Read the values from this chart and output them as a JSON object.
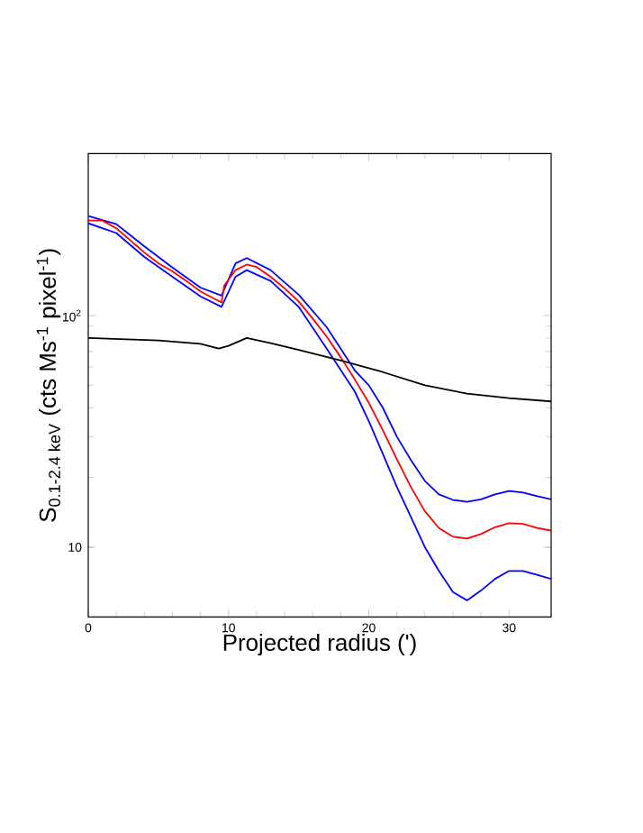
{
  "chart_data": {
    "type": "line",
    "xlabel": "Projected radius (')",
    "ylabel": "S$_{0.1-2.4 keV}$ (cts Ms$^{-1}$ pixel$^{-1}$)",
    "log": "y",
    "grid": false,
    "marker": "none",
    "line_style": "solid",
    "xlim": [
      0,
      33
    ],
    "ylim": [
      5,
      500
    ],
    "xticks": [
      0,
      10,
      20,
      30
    ],
    "yticks": [
      10,
      {
        "value": 100,
        "label": "10$^{2}$"
      }
    ],
    "series": [
      {
        "color": "#0000ff",
        "x": [
          0,
          2,
          4,
          6,
          8,
          9.5,
          10.5,
          11.3,
          13,
          15,
          17,
          19,
          20,
          21,
          22,
          23,
          24,
          25,
          26,
          27,
          28,
          29,
          30,
          31,
          32,
          33
        ],
        "values": [
          269,
          248,
          199,
          161,
          132,
          122,
          168,
          177,
          157,
          123,
          89,
          58,
          50,
          40,
          30,
          23.8,
          19.3,
          16.9,
          16.0,
          15.7,
          16.1,
          16.9,
          17.5,
          17.2,
          16.6,
          16.1
        ]
      },
      {
        "color": "#0000ff",
        "x": [
          0,
          2,
          4,
          6,
          8,
          9.5,
          10.5,
          11.3,
          13,
          15,
          17,
          19,
          20,
          21,
          22,
          23,
          24,
          25,
          26,
          27,
          28,
          29,
          30,
          31,
          32,
          33
        ],
        "values": [
          250,
          227,
          179,
          147,
          121,
          109,
          147,
          157,
          141,
          109,
          72,
          47,
          35,
          25.3,
          18.2,
          13.5,
          10.0,
          7.9,
          6.4,
          5.9,
          6.5,
          7.3,
          7.9,
          7.9,
          7.6,
          7.3
        ]
      },
      {
        "color": "#ff0000",
        "x": [
          0,
          1,
          2,
          3,
          4,
          5,
          6,
          7,
          8,
          9,
          9.5,
          9.7,
          10.5,
          11.3,
          12,
          13,
          14,
          15,
          16,
          17,
          18,
          19,
          20,
          21,
          22,
          23,
          24,
          25,
          26,
          27,
          28,
          29,
          30,
          31,
          32,
          33
        ],
        "values": [
          257,
          257,
          238,
          211,
          187,
          168,
          155,
          141,
          127,
          118,
          114,
          135,
          157,
          166,
          162,
          147,
          131,
          115,
          97,
          81,
          66,
          53,
          42,
          32,
          24,
          18.2,
          14.3,
          12.1,
          11.1,
          10.9,
          11.4,
          12.2,
          12.7,
          12.6,
          12.1,
          11.8
        ]
      },
      {
        "color": "#000000",
        "x": [
          0,
          5,
          8,
          9.3,
          10,
          11.3,
          13,
          15,
          18,
          21,
          24,
          27,
          30,
          33
        ],
        "values": [
          80,
          78,
          75.5,
          72,
          74,
          80,
          76,
          71,
          64,
          57,
          50,
          46,
          44,
          42.6
        ]
      }
    ]
  }
}
